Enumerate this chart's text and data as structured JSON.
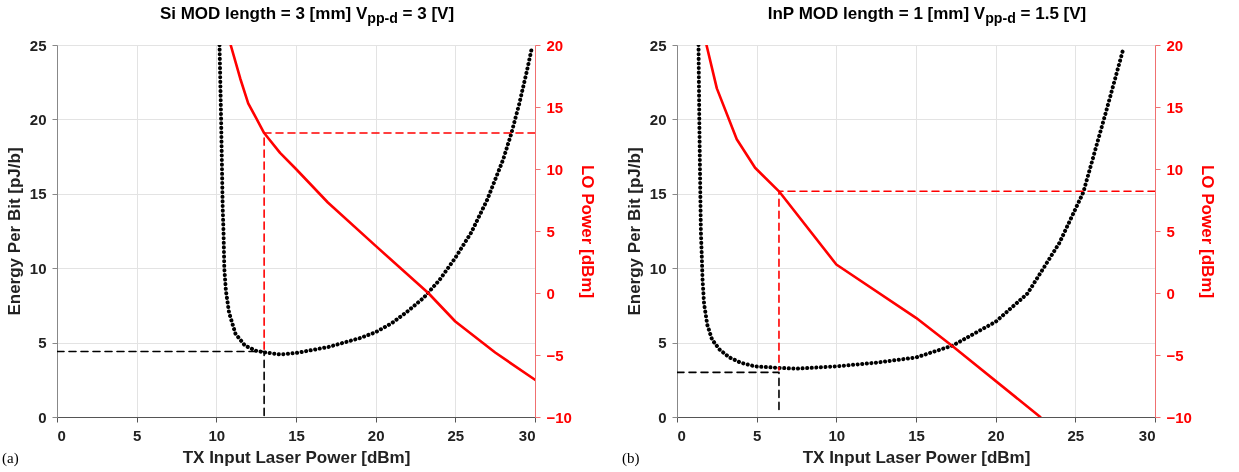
{
  "chart_data": [
    {
      "type": "line",
      "title": "Si MOD length = 3 [mm] V$_{pp-d}$ = 3 [V]",
      "xlabel": "TX Input Laser Power [dBm]",
      "ylabel": "Energy Per Bit [pJ/b]",
      "y2label": "LO Power [dBm]",
      "xlim": [
        0,
        30
      ],
      "xticks": [
        0,
        5,
        10,
        15,
        20,
        25,
        30
      ],
      "ylim": [
        0,
        25
      ],
      "yticks": [
        0,
        5,
        10,
        15,
        20,
        25
      ],
      "y2lim": [
        -10,
        20
      ],
      "y2ticks": [
        -10,
        -5,
        0,
        5,
        10,
        15,
        20
      ],
      "grid": true,
      "annotations": [
        "(a)"
      ],
      "series": [
        {
          "color": "#000000",
          "line_style": "dotted",
          "x": [
            10.2,
            10.3,
            10.35,
            10.4,
            10.45,
            10.5,
            10.6,
            10.8,
            11.2,
            11.8,
            12.5,
            13,
            14,
            15,
            16,
            17,
            18,
            19,
            20,
            21,
            22,
            23,
            24,
            25,
            26,
            27,
            28,
            28.5,
            29,
            29.5,
            29.8
          ],
          "values": [
            25,
            20,
            17,
            14,
            12.5,
            10,
            8.5,
            7,
            5.6,
            4.8,
            4.45,
            4.35,
            4.2,
            4.3,
            4.5,
            4.7,
            5,
            5.3,
            5.7,
            6.3,
            7.1,
            8,
            9.2,
            10.7,
            12.4,
            14.6,
            17.3,
            19,
            21,
            23.3,
            24.8
          ]
        },
        {
          "color": "#ff0000",
          "axis": "y2",
          "x": [
            10.9,
            11.5,
            12,
            13,
            14,
            15,
            17,
            20,
            23.3,
            25,
            27.5,
            30
          ],
          "values": [
            20,
            17.3,
            15.3,
            12.9,
            11.3,
            10,
            7.3,
            3.8,
            0,
            -2.3,
            -4.8,
            -7
          ]
        },
        {
          "color": "#000000",
          "line_style": "dashed",
          "x": [
            0,
            13,
            13
          ],
          "values": [
            4.4,
            4.4,
            0
          ]
        },
        {
          "color": "#ff0000",
          "axis": "y2",
          "line_style": "dashed",
          "x": [
            30,
            13,
            13
          ],
          "values": [
            12.9,
            12.9,
            -4.7
          ]
        }
      ]
    },
    {
      "type": "line",
      "title": "InP MOD length = 1 [mm] V$_{pp-d}$ = 1.5 [V]",
      "xlabel": "TX Input Laser Power [dBm]",
      "ylabel": "Energy Per Bit [pJ/b]",
      "y2label": "LO Power [dBm]",
      "xlim": [
        0,
        30
      ],
      "xticks": [
        0,
        5,
        10,
        15,
        20,
        25,
        30
      ],
      "ylim": [
        0,
        25
      ],
      "yticks": [
        0,
        5,
        10,
        15,
        20,
        25
      ],
      "y2lim": [
        -10,
        20
      ],
      "y2ticks": [
        -10,
        -5,
        0,
        5,
        10,
        15,
        20
      ],
      "grid": true,
      "annotations": [
        "(b)"
      ],
      "series": [
        {
          "color": "#000000",
          "line_style": "dotted",
          "x": [
            1.35,
            1.4,
            1.45,
            1.5,
            1.55,
            1.6,
            1.7,
            1.9,
            2.2,
            2.7,
            3.3,
            4,
            4.9,
            6.4,
            7.5,
            10,
            12.5,
            15,
            17.3,
            20,
            22,
            24,
            25.5,
            27,
            28
          ],
          "values": [
            25,
            20,
            16,
            12.4,
            11,
            9.3,
            7.6,
            6.2,
            5.2,
            4.5,
            4,
            3.65,
            3.4,
            3.3,
            3.25,
            3.4,
            3.65,
            4,
            4.8,
            6.4,
            8.3,
            11.7,
            15.1,
            20.8,
            24.7
          ]
        },
        {
          "color": "#ff0000",
          "axis": "y2",
          "x": [
            1.85,
            2.5,
            3.75,
            4.9,
            6.4,
            10,
            15,
            17.3,
            22.8
          ],
          "values": [
            20,
            16.5,
            12.4,
            10.1,
            8.2,
            2.3,
            -2,
            -4.3,
            -10
          ]
        },
        {
          "color": "#000000",
          "line_style": "dashed",
          "x": [
            0,
            6.4,
            6.4
          ],
          "values": [
            3,
            3,
            0.5
          ]
        },
        {
          "color": "#ff0000",
          "axis": "y2",
          "line_style": "dashed",
          "x": [
            30,
            6.4,
            6.4
          ],
          "values": [
            8.2,
            8.2,
            -6.2
          ]
        }
      ]
    }
  ]
}
